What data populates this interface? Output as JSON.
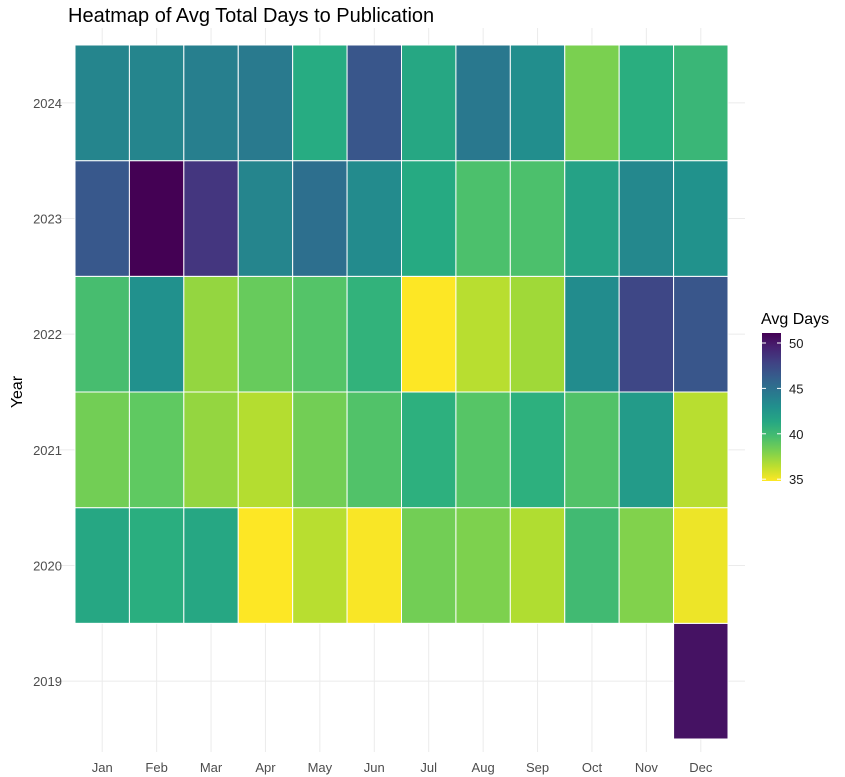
{
  "chart_data": {
    "type": "heatmap",
    "title": "Heatmap of Avg Total Days to Publication",
    "xlabel": "",
    "ylabel": "Year",
    "x_categories": [
      "Jan",
      "Feb",
      "Mar",
      "Apr",
      "May",
      "Jun",
      "Jul",
      "Aug",
      "Sep",
      "Oct",
      "Nov",
      "Dec"
    ],
    "y_categories": [
      "2019",
      "2020",
      "2021",
      "2022",
      "2023",
      "2024"
    ],
    "values": [
      [
        null,
        null,
        null,
        null,
        null,
        null,
        null,
        null,
        null,
        null,
        null,
        50.3
      ],
      [
        41.3,
        40.8,
        41.3,
        34.8,
        36.5,
        34.9,
        38.3,
        38.0,
        36.7,
        39.9,
        37.9,
        35.2
      ],
      [
        38.3,
        38.8,
        37.4,
        36.6,
        38.3,
        39.3,
        40.7,
        39.1,
        40.7,
        39.3,
        42.2,
        36.5
      ],
      [
        39.7,
        42.9,
        37.4,
        38.6,
        39.2,
        40.5,
        34.8,
        36.5,
        37.1,
        43.2,
        47.6,
        46.7
      ],
      [
        46.6,
        51.1,
        48.5,
        43.7,
        45.1,
        43.3,
        41.1,
        39.5,
        39.5,
        41.7,
        43.5,
        42.8
      ],
      [
        43.7,
        43.7,
        44.1,
        44.4,
        41.0,
        46.7,
        41.3,
        44.5,
        43.1,
        38.1,
        40.8,
        40.2
      ]
    ],
    "legend": {
      "title": "Avg Days",
      "position": "right",
      "breaks": [
        35,
        40,
        45,
        50
      ],
      "min": 34.8,
      "max": 51.1,
      "colormap": "viridis (reversed: high = dark purple, low = yellow)"
    },
    "grid": true
  }
}
